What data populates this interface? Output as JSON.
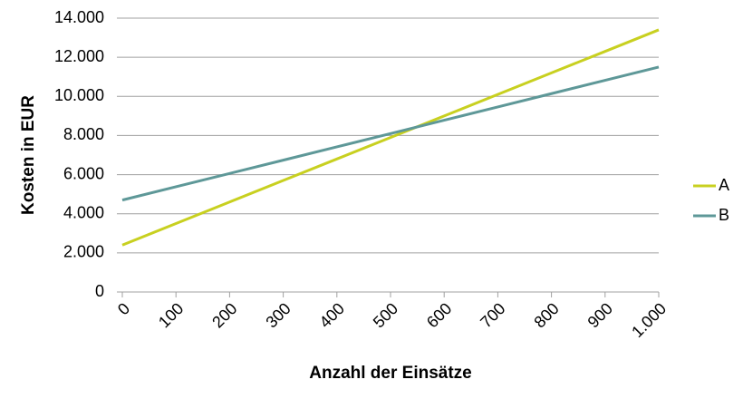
{
  "chart_data": {
    "type": "line",
    "x_label": "Anzahl der Einsätze",
    "y_label": "Kosten in EUR",
    "x": [
      0,
      100,
      200,
      300,
      400,
      500,
      600,
      700,
      800,
      900,
      1000
    ],
    "series": [
      {
        "name": "A",
        "color": "#c8d020",
        "values": [
          2400,
          3500,
          4600,
          5700,
          6800,
          7900,
          9000,
          10100,
          11200,
          12300,
          13400
        ]
      },
      {
        "name": "B",
        "color": "#5e9898",
        "values": [
          4700,
          5380,
          6060,
          6740,
          7420,
          8100,
          8780,
          9460,
          10140,
          10820,
          11500
        ]
      }
    ],
    "xlim": [
      0,
      1000
    ],
    "xticks": [
      0,
      100,
      200,
      300,
      400,
      500,
      600,
      700,
      800,
      900,
      {
        "value": 1000,
        "label": "1.000"
      }
    ],
    "ylim": [
      0,
      14000
    ],
    "yticks": [
      0,
      {
        "value": 2000,
        "label": "2.000"
      },
      {
        "value": 4000,
        "label": "4.000"
      },
      {
        "value": 6000,
        "label": "6.000"
      },
      {
        "value": 8000,
        "label": "8.000"
      },
      {
        "value": 10000,
        "label": "10.000"
      },
      {
        "value": 12000,
        "label": "12.000"
      },
      {
        "value": 14000,
        "label": "14.000"
      }
    ],
    "grid": true,
    "legend": "right"
  }
}
